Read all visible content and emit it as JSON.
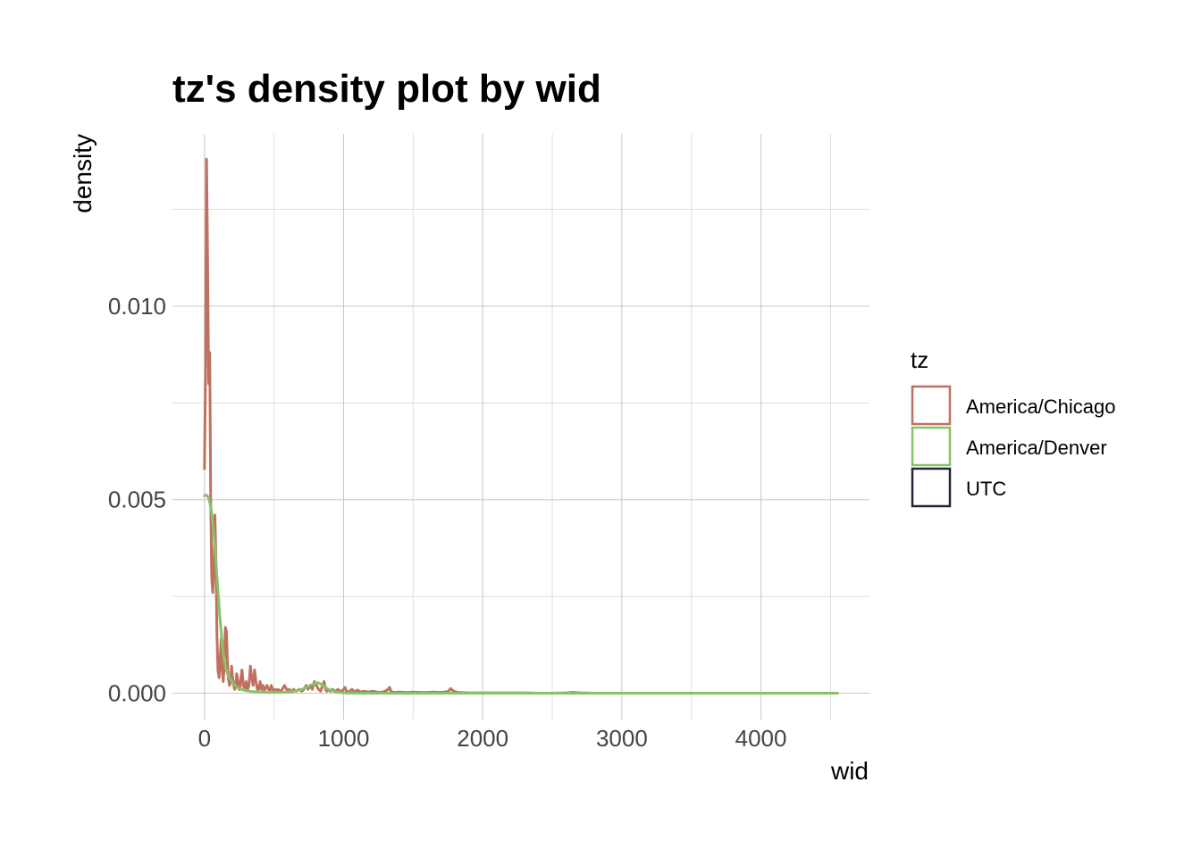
{
  "chart_data": {
    "type": "line",
    "title": "tz's density plot by wid",
    "xlabel": "wid",
    "ylabel": "density",
    "xlim": [
      -230,
      4780
    ],
    "ylim": [
      -0.00068,
      0.01445
    ],
    "x_ticks": [
      0,
      1000,
      2000,
      3000,
      4000
    ],
    "x_tick_labels": [
      "0",
      "1000",
      "2000",
      "3000",
      "4000"
    ],
    "x_minor_ticks": [
      500,
      1500,
      2500,
      3500,
      4500
    ],
    "y_ticks": [
      0.0,
      0.005,
      0.01
    ],
    "y_tick_labels": [
      "0.000",
      "0.005",
      "0.010"
    ],
    "y_minor_ticks": [
      0.0025,
      0.0075,
      0.0125
    ],
    "grid": true,
    "legend": {
      "title": "tz",
      "position": "right",
      "entries": [
        {
          "label": "America/Chicago",
          "color": "#c0705e"
        },
        {
          "label": "America/Denver",
          "color": "#86c26a"
        },
        {
          "label": "UTC",
          "color": "#2a2238"
        }
      ]
    },
    "series": [
      {
        "name": "America/Chicago",
        "color": "#c0705e",
        "x": [
          0,
          8,
          15,
          22,
          30,
          38,
          45,
          52,
          60,
          68,
          75,
          82,
          90,
          97,
          105,
          112,
          120,
          128,
          135,
          142,
          150,
          158,
          165,
          172,
          180,
          188,
          195,
          202,
          210,
          218,
          225,
          232,
          240,
          248,
          255,
          262,
          270,
          280,
          290,
          300,
          310,
          320,
          330,
          340,
          350,
          360,
          370,
          380,
          390,
          400,
          410,
          420,
          430,
          440,
          450,
          460,
          470,
          480,
          490,
          500,
          510,
          520,
          530,
          545,
          560,
          575,
          590,
          600,
          610,
          625,
          640,
          660,
          680,
          700,
          715,
          730,
          745,
          760,
          775,
          790,
          805,
          820,
          835,
          850,
          860,
          870,
          880,
          890,
          905,
          920,
          940,
          960,
          980,
          1000,
          1010,
          1020,
          1040,
          1060,
          1080,
          1100,
          1120,
          1150,
          1180,
          1210,
          1240,
          1270,
          1300,
          1320,
          1330,
          1340,
          1360,
          1400,
          1450,
          1500,
          1550,
          1600,
          1650,
          1700,
          1750,
          1770,
          1790,
          1820,
          1900,
          2000,
          2100,
          2200,
          2300,
          2400,
          2500,
          2600,
          2650,
          2700,
          2800,
          3000,
          3200,
          3400,
          3600,
          3800,
          4000,
          4200,
          4400,
          4550
        ],
        "y": [
          0.0058,
          0.0085,
          0.0138,
          0.0115,
          0.008,
          0.0088,
          0.005,
          0.003,
          0.0026,
          0.0032,
          0.0046,
          0.0035,
          0.0015,
          0.0006,
          0.0004,
          0.0008,
          0.0014,
          0.0006,
          0.0003,
          0.0007,
          0.0017,
          0.0016,
          0.0008,
          0.0004,
          0.0002,
          0.0003,
          0.0007,
          0.0004,
          0.0002,
          0.0001,
          0.0002,
          0.0005,
          0.0003,
          0.0001,
          0.0001,
          0.0004,
          0.0006,
          0.0002,
          0.0001,
          0.0003,
          0.0001,
          0.0002,
          0.0007,
          0.0004,
          0.0002,
          0.0006,
          0.0003,
          0.0001,
          0.0001,
          0.0003,
          0.0001,
          0.0002,
          5e-05,
          0.00015,
          0.0002,
          0.0001,
          5e-05,
          0.0002,
          0.0001,
          5e-05,
          0.0001,
          3e-05,
          0.0001,
          5e-05,
          0.0001,
          0.0002,
          0.0001,
          5e-05,
          0.0001,
          3e-05,
          0.0001,
          5e-05,
          0.0001,
          5e-05,
          0.0001,
          0.0002,
          0.0001,
          0.0002,
          0.0001,
          0.0003,
          0.0002,
          0.0001,
          5e-05,
          0.0002,
          0.0003,
          0.0001,
          5e-05,
          0.0001,
          5e-05,
          0.0001,
          5e-05,
          0.0001,
          3e-05,
          0.0001,
          0.00015,
          5e-05,
          3e-05,
          0.0001,
          3e-05,
          8e-05,
          3e-05,
          5e-05,
          3e-05,
          5e-05,
          3e-05,
          2e-05,
          5e-05,
          0.0001,
          0.00015,
          5e-05,
          2e-05,
          3e-05,
          2e-05,
          3e-05,
          2e-05,
          2e-05,
          3e-05,
          2e-05,
          4e-05,
          0.00012,
          5e-05,
          2e-05,
          1e-05,
          1e-05,
          1e-05,
          1e-05,
          1e-05,
          0.0,
          0.0,
          1e-05,
          2e-05,
          1e-05,
          0.0,
          0.0,
          0.0,
          0.0,
          0.0,
          0.0,
          0.0,
          0.0,
          0.0,
          0.0
        ]
      },
      {
        "name": "America/Denver",
        "color": "#86c26a",
        "x": [
          0,
          10,
          20,
          30,
          40,
          50,
          60,
          70,
          80,
          90,
          100,
          110,
          120,
          130,
          140,
          150,
          165,
          180,
          200,
          220,
          250,
          280,
          310,
          350,
          400,
          450,
          500,
          550,
          600,
          650,
          700,
          730,
          760,
          790,
          810,
          830,
          850,
          870,
          890,
          920,
          950,
          1000,
          1100,
          1200,
          1500,
          2000,
          2500,
          3000,
          3500,
          4000,
          4550
        ],
        "y": [
          0.0051,
          0.00512,
          0.0051,
          0.00505,
          0.0049,
          0.0047,
          0.0044,
          0.004,
          0.0035,
          0.003,
          0.0025,
          0.002,
          0.0016,
          0.0012,
          0.0009,
          0.0007,
          0.0005,
          0.0004,
          0.00028,
          0.0002,
          0.00012,
          8e-05,
          6e-05,
          4e-05,
          3e-05,
          2e-05,
          2e-05,
          2e-05,
          3e-05,
          5e-05,
          0.0001,
          0.00015,
          0.0002,
          0.00025,
          0.00027,
          0.00025,
          0.0002,
          0.00015,
          0.0001,
          6e-05,
          3e-05,
          1e-05,
          0.0,
          0.0,
          0.0,
          0.0,
          0.0,
          0.0,
          0.0,
          0.0,
          0.0
        ]
      }
    ]
  }
}
